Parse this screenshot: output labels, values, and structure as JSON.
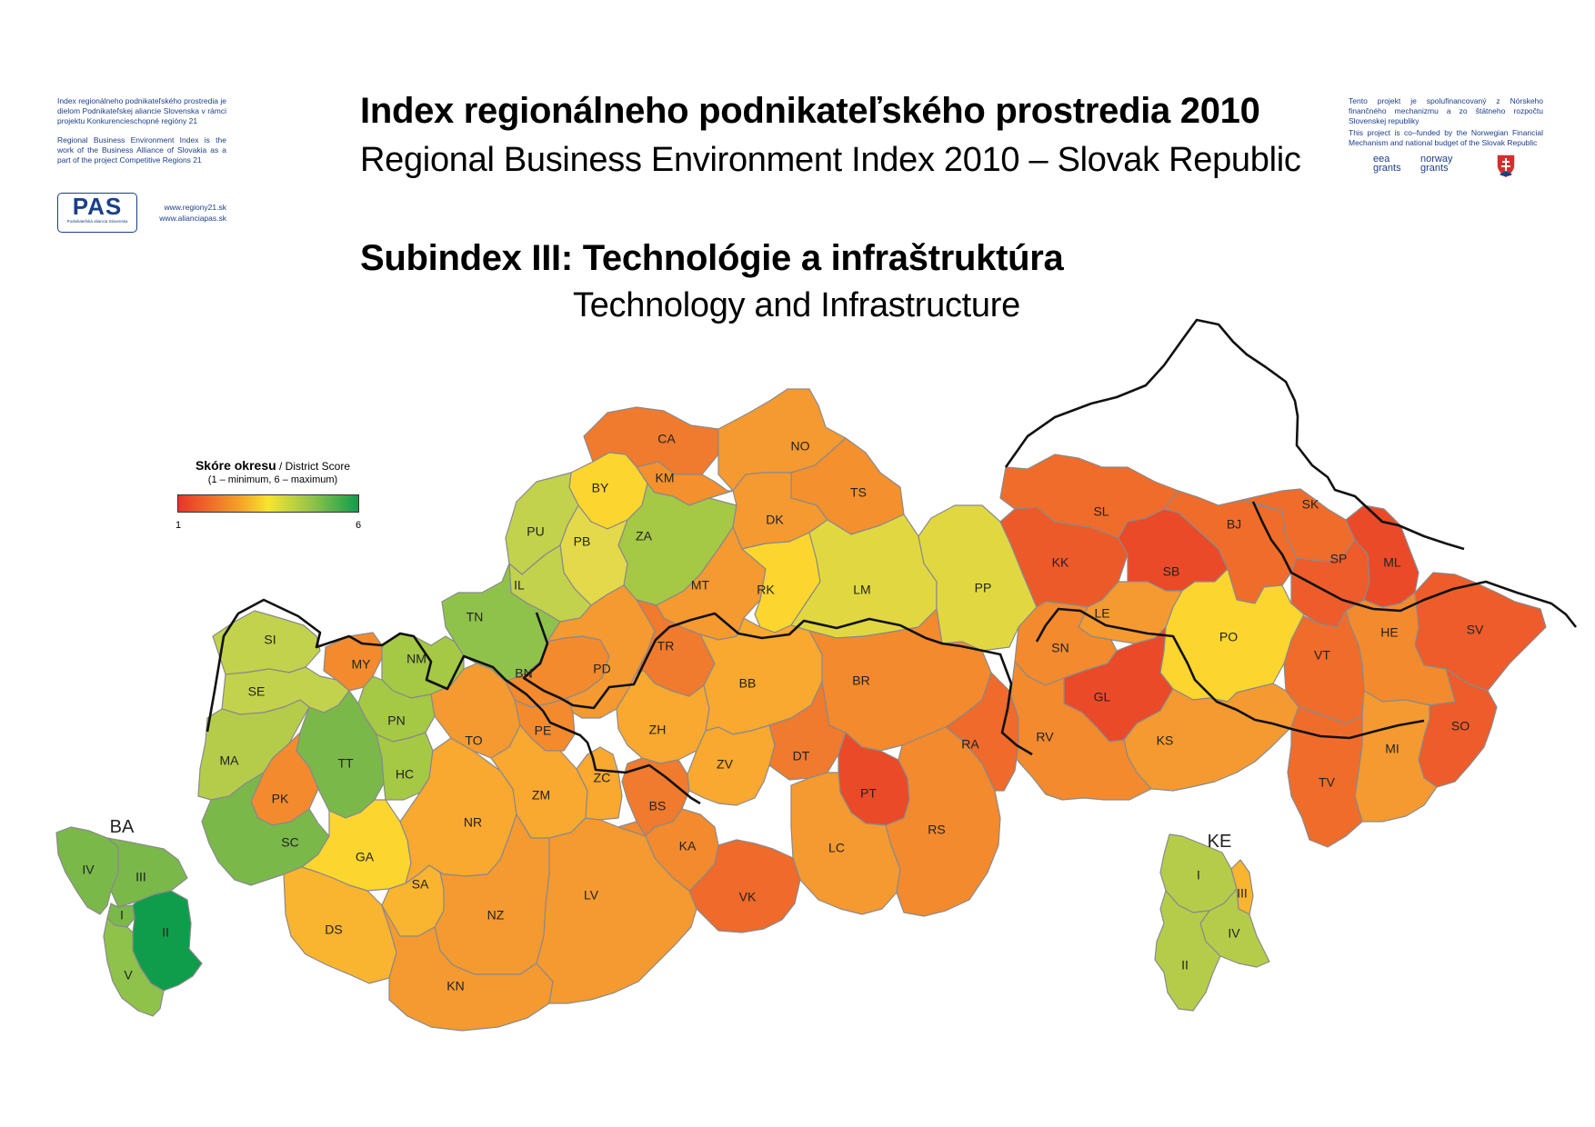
{
  "header": {
    "title_sk": "Index regionálneho podnikateľského prostredia 2010",
    "title_en": "Regional Business Environment Index 2010 – Slovak Republic",
    "subindex_sk": "Subindex III: Technológie a infraštruktúra",
    "subindex_en": "Technology and Infrastructure"
  },
  "left_note": {
    "line1": "Index regionálneho podnikateľského prostredia je dielom Podnikateľskej aliancie Slovenska v rámci projektu Konkurencieschopné regióny 21",
    "line2": "Regional Business Environment Index is the work of the Business Alliance of Slovakia as a part of the project Competitive Regions 21",
    "logo_text": "PAS",
    "logo_subtext": "Podnikateľská aliancia Slovenska",
    "link1": "www.regiony21.sk",
    "link2": "www.alianciapas.sk"
  },
  "right_note": {
    "line_sk": "Tento projekt je spolufinancovaný z Nórskeho finančného mechanizmu a zo štátneho rozpočtu Slovenskej republiky",
    "line_en": "This project is co–funded by the Norwegian Financial Mechanism and national budget of the Slovak Republic",
    "logo1": "eea grants",
    "logo2": "norway grants"
  },
  "legend": {
    "title_sk": "Skóre okresu",
    "title_en": "/ District Score",
    "range": "(1 – minimum, 6 – maximum)",
    "min": "1",
    "max": "6",
    "colors": [
      "#e8342a",
      "#f4a428",
      "#f8e42f",
      "#8fc24a",
      "#0f9d4c"
    ]
  },
  "insets": {
    "ba_title": "BA",
    "ke_title": "KE"
  },
  "districts": [
    {
      "code": "CA",
      "color": "#f07a2e"
    },
    {
      "code": "NO",
      "color": "#f59a30"
    },
    {
      "code": "TS",
      "color": "#f4902d"
    },
    {
      "code": "KM",
      "color": "#f4902d"
    },
    {
      "code": "BY",
      "color": "#fcd52f"
    },
    {
      "code": "ZA",
      "color": "#a5c845"
    },
    {
      "code": "PU",
      "color": "#c3d24c"
    },
    {
      "code": "PB",
      "color": "#e3d94a"
    },
    {
      "code": "IL",
      "color": "#c3d24c"
    },
    {
      "code": "DK",
      "color": "#f59a30"
    },
    {
      "code": "MT",
      "color": "#f59a30"
    },
    {
      "code": "RK",
      "color": "#fcd52f"
    },
    {
      "code": "LM",
      "color": "#e1d841"
    },
    {
      "code": "PP",
      "color": "#e1d841"
    },
    {
      "code": "KK",
      "color": "#ec5a2a"
    },
    {
      "code": "SL",
      "color": "#f06c2b"
    },
    {
      "code": "SB",
      "color": "#ea4a28"
    },
    {
      "code": "BJ",
      "color": "#f06c2b"
    },
    {
      "code": "SK",
      "color": "#f06c2b"
    },
    {
      "code": "SP",
      "color": "#ed5c2a"
    },
    {
      "code": "ML",
      "color": "#ea4a28"
    },
    {
      "code": "SV",
      "color": "#ed5c2a"
    },
    {
      "code": "HE",
      "color": "#f38a2e"
    },
    {
      "code": "VT",
      "color": "#f06c2b"
    },
    {
      "code": "PO",
      "color": "#fcd52f"
    },
    {
      "code": "LE",
      "color": "#f59a30"
    },
    {
      "code": "SN",
      "color": "#f38a2e"
    },
    {
      "code": "GL",
      "color": "#ea4a28"
    },
    {
      "code": "KS",
      "color": "#f59a30"
    },
    {
      "code": "RV",
      "color": "#f38a2e"
    },
    {
      "code": "SO",
      "color": "#ed5c2a"
    },
    {
      "code": "MI",
      "color": "#f59a30"
    },
    {
      "code": "TV",
      "color": "#f06c2b"
    },
    {
      "code": "TN",
      "color": "#8fc24a"
    },
    {
      "code": "SI",
      "color": "#c3d24c"
    },
    {
      "code": "MY",
      "color": "#f38a2e"
    },
    {
      "code": "NM",
      "color": "#a5c845"
    },
    {
      "code": "SE",
      "color": "#c3d24c"
    },
    {
      "code": "PN",
      "color": "#a5c845"
    },
    {
      "code": "MA",
      "color": "#b5cc4a"
    },
    {
      "code": "TT",
      "color": "#7ab84a"
    },
    {
      "code": "HC",
      "color": "#a5c845"
    },
    {
      "code": "PK",
      "color": "#f38a2e"
    },
    {
      "code": "SC",
      "color": "#7ab84a"
    },
    {
      "code": "GA",
      "color": "#fcd52f"
    },
    {
      "code": "DS",
      "color": "#f9b430"
    },
    {
      "code": "SA",
      "color": "#f9b430"
    },
    {
      "code": "NR",
      "color": "#f9a830"
    },
    {
      "code": "TO",
      "color": "#f59a30"
    },
    {
      "code": "ZM",
      "color": "#f9a830"
    },
    {
      "code": "NZ",
      "color": "#f59a30"
    },
    {
      "code": "KN",
      "color": "#f59a30"
    },
    {
      "code": "LV",
      "color": "#f59a30"
    },
    {
      "code": "ZC",
      "color": "#f9a830"
    },
    {
      "code": "BN",
      "color": "#f38a2e"
    },
    {
      "code": "PE",
      "color": "#f38a2e"
    },
    {
      "code": "PD",
      "color": "#f59a30"
    },
    {
      "code": "TR",
      "color": "#f07a2e"
    },
    {
      "code": "ZH",
      "color": "#f9a830"
    },
    {
      "code": "BB",
      "color": "#f9a830"
    },
    {
      "code": "BR",
      "color": "#f38a2e"
    },
    {
      "code": "ZV",
      "color": "#f9a830"
    },
    {
      "code": "DT",
      "color": "#f07a2e"
    },
    {
      "code": "BS",
      "color": "#f07a2e"
    },
    {
      "code": "KA",
      "color": "#f38a2e"
    },
    {
      "code": "VK",
      "color": "#ef6a2b"
    },
    {
      "code": "PT",
      "color": "#ea4a28"
    },
    {
      "code": "LC",
      "color": "#f59a30"
    },
    {
      "code": "RS",
      "color": "#f38a2e"
    },
    {
      "code": "RA",
      "color": "#ef6a2b"
    },
    {
      "code": "BA IV",
      "color": "#7ab84a"
    },
    {
      "code": "BA III",
      "color": "#7ab84a"
    },
    {
      "code": "BA I",
      "color": "#7ab84a"
    },
    {
      "code": "BA II",
      "color": "#0f9d4c"
    },
    {
      "code": "BA V",
      "color": "#8fc24a"
    },
    {
      "code": "KE I",
      "color": "#b5cc4a"
    },
    {
      "code": "KE III",
      "color": "#f9b430"
    },
    {
      "code": "KE IV",
      "color": "#b5cc4a"
    },
    {
      "code": "KE II",
      "color": "#b5cc4a"
    }
  ]
}
